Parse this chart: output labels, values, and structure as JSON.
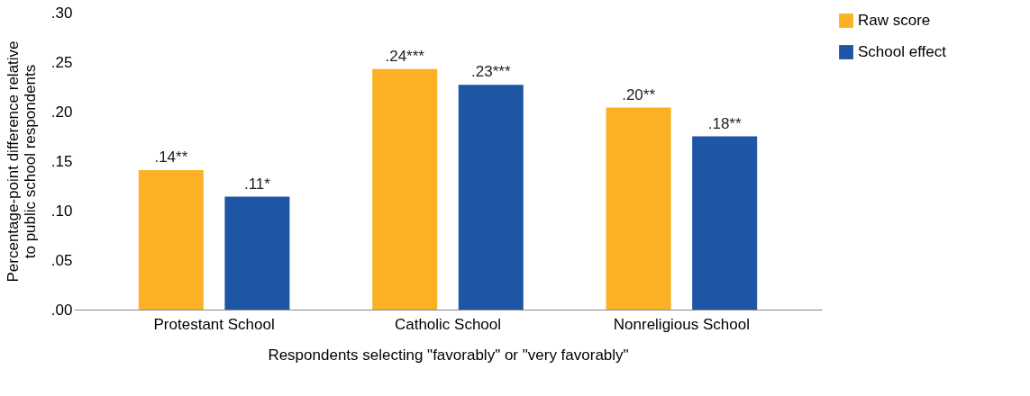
{
  "chart_data": {
    "type": "bar",
    "xlabel": "Respondents selecting \"favorably\" or \"very favorably\"",
    "ylabel": "Percentage-point difference relative\nto public school respondents",
    "categories": [
      "Protestant School",
      "Catholic School",
      "Nonreligious School"
    ],
    "series": [
      {
        "name": "Raw score",
        "color": "#fbb123",
        "values": [
          0.141,
          0.243,
          0.204
        ],
        "value_labels": [
          ".14**",
          ".24***",
          ".20**"
        ]
      },
      {
        "name": "School effect",
        "color": "#1f55a5",
        "values": [
          0.114,
          0.227,
          0.175
        ],
        "value_labels": [
          ".11*",
          ".23***",
          ".18**"
        ]
      }
    ],
    "ylim": [
      0,
      0.3
    ],
    "yticks": [
      {
        "value": 0,
        "label": ".00"
      },
      {
        "value": 0.05,
        "label": ".05"
      },
      {
        "value": 0.1,
        "label": ".10"
      },
      {
        "value": 0.15,
        "label": ".15"
      },
      {
        "value": 0.2,
        "label": ".20"
      },
      {
        "value": 0.25,
        "label": ".25"
      },
      {
        "value": 0.3,
        "label": ".30"
      }
    ],
    "grid": false,
    "legend": "right"
  }
}
